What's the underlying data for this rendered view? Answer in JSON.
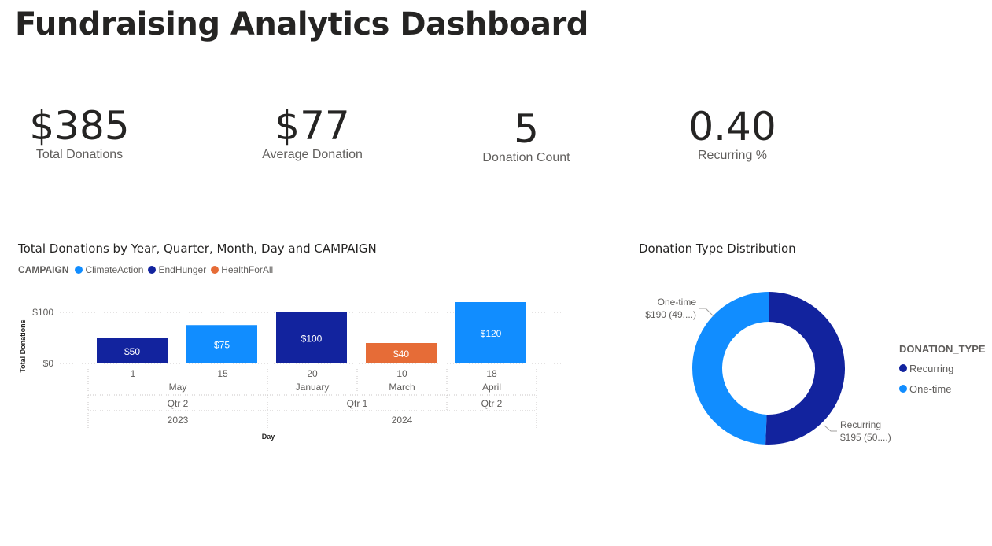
{
  "title": "Fundraising Analytics Dashboard",
  "kpis": [
    {
      "value": "$385",
      "label": "Total Donations"
    },
    {
      "value": "$77",
      "label": "Average Donation"
    },
    {
      "value": "5",
      "label": "Donation Count"
    },
    {
      "value": "0.40",
      "label": "Recurring %"
    }
  ],
  "bar_chart": {
    "title": "Total Donations by Year, Quarter, Month, Day and CAMPAIGN",
    "legend_title": "CAMPAIGN",
    "legend": [
      {
        "name": "ClimateAction",
        "color": "#118DFF"
      },
      {
        "name": "EndHunger",
        "color": "#12239E"
      },
      {
        "name": "HealthForAll",
        "color": "#E66C37"
      }
    ]
  },
  "donut_chart": {
    "title": "Donation Type Distribution",
    "legend_title": "DONATION_TYPE",
    "legend": [
      {
        "name": "Recurring",
        "color": "#12239E"
      },
      {
        "name": "One-time",
        "color": "#118DFF"
      }
    ],
    "labels": {
      "one_time_name": "One-time",
      "one_time_value": "$190 (49....)",
      "recurring_name": "Recurring",
      "recurring_value": "$195 (50....)"
    }
  },
  "chart_data": [
    {
      "type": "bar",
      "title": "Total Donations by Year, Quarter, Month, Day and CAMPAIGN",
      "xlabel": "Day",
      "ylabel": "Total Donations",
      "ylim": [
        0,
        120
      ],
      "yticks": [
        {
          "value": 0,
          "label": "$0"
        },
        {
          "value": 100,
          "label": "$100"
        }
      ],
      "grid": true,
      "categories": [
        "1",
        "15",
        "20",
        "10",
        "18"
      ],
      "months": [
        {
          "label": "May",
          "span": 2
        },
        {
          "label": "January",
          "span": 1
        },
        {
          "label": "March",
          "span": 1
        },
        {
          "label": "April",
          "span": 1
        }
      ],
      "quarters": [
        {
          "label": "Qtr 2",
          "span": 2
        },
        {
          "label": "Qtr 1",
          "span": 2
        },
        {
          "label": "Qtr 2",
          "span": 1
        }
      ],
      "years": [
        {
          "label": "2023",
          "span": 2
        },
        {
          "label": "2024",
          "span": 3
        }
      ],
      "bars": [
        {
          "value": 50,
          "label": "$50",
          "campaign": "EndHunger",
          "color": "#12239E"
        },
        {
          "value": 75,
          "label": "$75",
          "campaign": "ClimateAction",
          "color": "#118DFF"
        },
        {
          "value": 100,
          "label": "$100",
          "campaign": "EndHunger",
          "color": "#12239E"
        },
        {
          "value": 40,
          "label": "$40",
          "campaign": "HealthForAll",
          "color": "#E66C37"
        },
        {
          "value": 120,
          "label": "$120",
          "campaign": "ClimateAction",
          "color": "#118DFF"
        }
      ]
    },
    {
      "type": "pie",
      "title": "Donation Type Distribution",
      "slices": [
        {
          "name": "Recurring",
          "value": 195,
          "label": "$195 (50....)",
          "color": "#12239E"
        },
        {
          "name": "One-time",
          "value": 190,
          "label": "$190 (49....)",
          "color": "#118DFF"
        }
      ]
    }
  ]
}
